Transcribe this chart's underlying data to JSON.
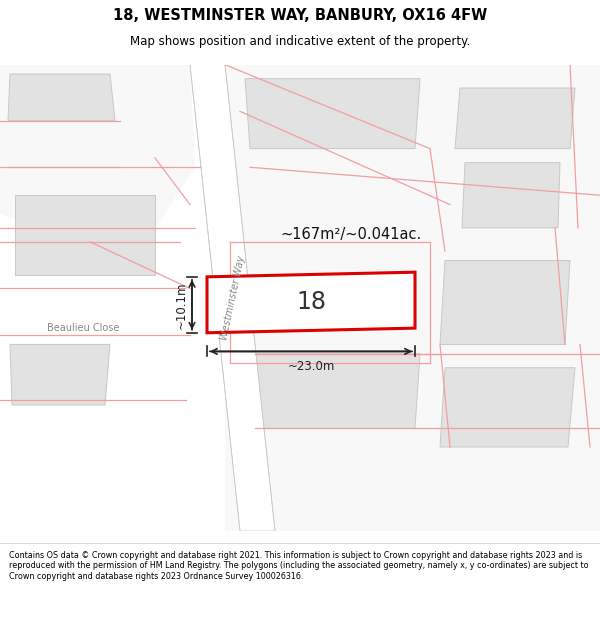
{
  "title_line1": "18, WESTMINSTER WAY, BANBURY, OX16 4FW",
  "title_line2": "Map shows position and indicative extent of the property.",
  "footer_text": "Contains OS data © Crown copyright and database right 2021. This information is subject to Crown copyright and database rights 2023 and is reproduced with the permission of HM Land Registry. The polygons (including the associated geometry, namely x, y co-ordinates) are subject to Crown copyright and database rights 2023 Ordnance Survey 100026316.",
  "map_bg": "#f5f5f5",
  "road_color": "#ffffff",
  "road_ec": "#d0d0d0",
  "building_fill": "#e2e2e2",
  "building_edge": "#c8c8c8",
  "cadastral_color": "#f0a0a0",
  "highlight_fill": "#ffffff",
  "highlight_edge": "#dd0000",
  "highlight_lw": 2.2,
  "road_label": "Westminster Way",
  "street_label": "Beaulieu Close",
  "area_label": "~167m²/~0.041ac.",
  "number_label": "18",
  "dim_width": "~23.0m",
  "dim_height": "~10.1m"
}
